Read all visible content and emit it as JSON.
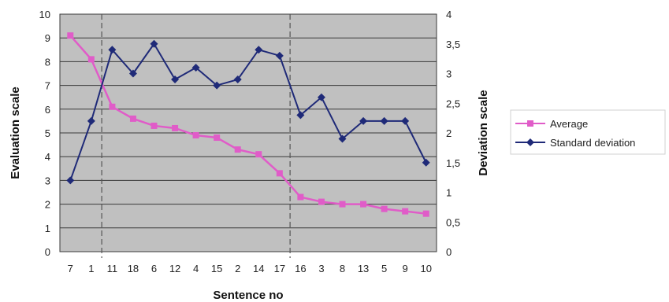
{
  "chart_data": {
    "type": "line",
    "xlabel": "Sentence no",
    "ylabel_left": "Evaluation scale",
    "ylabel_right": "Deviation scale",
    "categories": [
      "7",
      "1",
      "11",
      "18",
      "6",
      "12",
      "4",
      "15",
      "2",
      "14",
      "17",
      "16",
      "3",
      "8",
      "13",
      "5",
      "9",
      "10"
    ],
    "ylim_left": [
      0,
      10
    ],
    "ylim_right": [
      0,
      4
    ],
    "yticks_left": [
      "0",
      "1",
      "2",
      "3",
      "4",
      "5",
      "6",
      "7",
      "8",
      "9",
      "10"
    ],
    "yticks_right": [
      "0",
      "0,5",
      "1",
      "1,5",
      "2",
      "2,5",
      "3",
      "3,5",
      "4"
    ],
    "grid": true,
    "legend_position": "right",
    "series": [
      {
        "name": "Average",
        "axis": "left",
        "color": "#e05cc8",
        "marker": "square",
        "values": [
          9.1,
          8.1,
          6.1,
          5.6,
          5.3,
          5.2,
          4.9,
          4.8,
          4.3,
          4.1,
          3.3,
          2.3,
          2.1,
          2.0,
          2.0,
          1.8,
          1.7,
          1.6
        ]
      },
      {
        "name": "Standard deviation",
        "axis": "right",
        "color": "#1f2a78",
        "marker": "diamond",
        "values": [
          1.2,
          2.2,
          3.4,
          3.0,
          3.5,
          2.9,
          3.1,
          2.8,
          2.9,
          3.4,
          3.3,
          2.3,
          2.6,
          1.9,
          2.2,
          2.2,
          2.2,
          1.5
        ]
      }
    ],
    "divider_categories_after": [
      "1",
      "17"
    ]
  }
}
